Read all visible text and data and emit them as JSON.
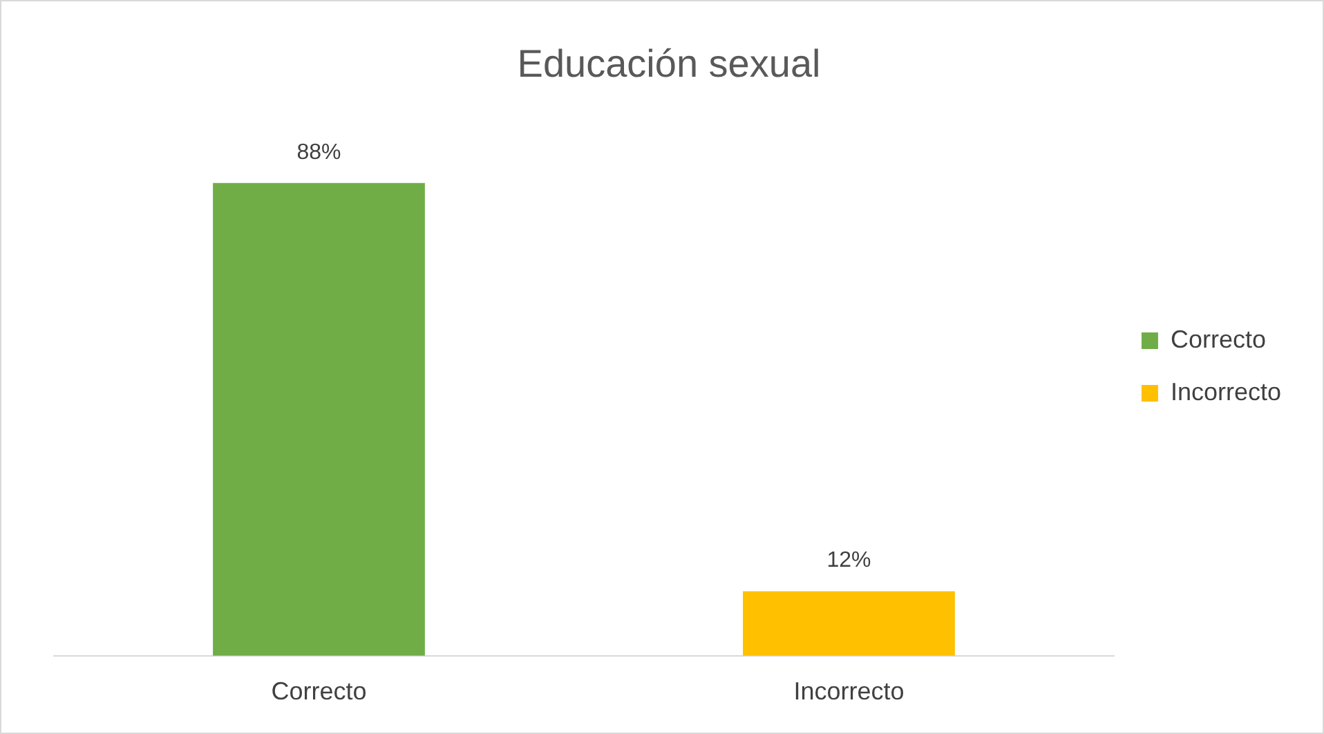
{
  "chart_data": {
    "type": "bar",
    "title": "Educación sexual",
    "categories": [
      "Correcto",
      "Incorrecto"
    ],
    "series": [
      {
        "name": "Correcto",
        "color": "#70ad47",
        "values": [
          88,
          null
        ],
        "value_labels": [
          "88%",
          null
        ]
      },
      {
        "name": "Incorrecto",
        "color": "#ffc000",
        "values": [
          null,
          12
        ],
        "value_labels": [
          null,
          "12%"
        ]
      }
    ],
    "legend": "right"
  }
}
